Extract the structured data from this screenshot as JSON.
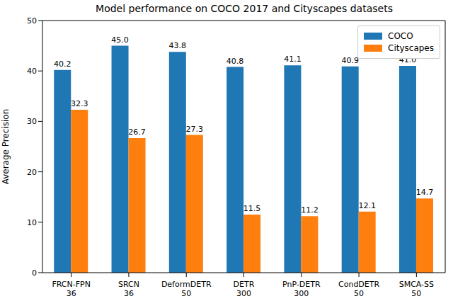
{
  "chart_data": {
    "type": "bar",
    "title": "Model performance on COCO 2017 and Cityscapes datasets",
    "y_label": "Average Precision",
    "categories": [
      "FRCN-FPN\n36",
      "SRCN\n36",
      "DeformDETR\n50",
      "DETR\n300",
      "PnP-DETR\n300",
      "CondDETR\n50",
      "SMCA-SS\n50"
    ],
    "series": [
      {
        "name": "COCO",
        "color": "#1f77b4",
        "values": [
          40.2,
          45.0,
          43.8,
          40.8,
          41.1,
          40.9,
          41.0
        ],
        "value_labels": [
          "40.2",
          "45.0",
          "43.8",
          "40.8",
          "41.1",
          "40.9",
          "41.0"
        ]
      },
      {
        "name": "Cityscapes",
        "color": "#ff7f0e",
        "values": [
          32.3,
          26.7,
          27.3,
          11.5,
          11.2,
          12.1,
          14.7
        ],
        "value_labels": [
          "32.3",
          "26.7",
          "27.3",
          "11.5",
          "11.2",
          "12.1",
          "14.7"
        ]
      }
    ],
    "ylim": [
      0,
      50
    ],
    "yticks": [
      0,
      10,
      20,
      30,
      40,
      50
    ],
    "grid": false,
    "legend": "upper right",
    "data_labels": true
  }
}
